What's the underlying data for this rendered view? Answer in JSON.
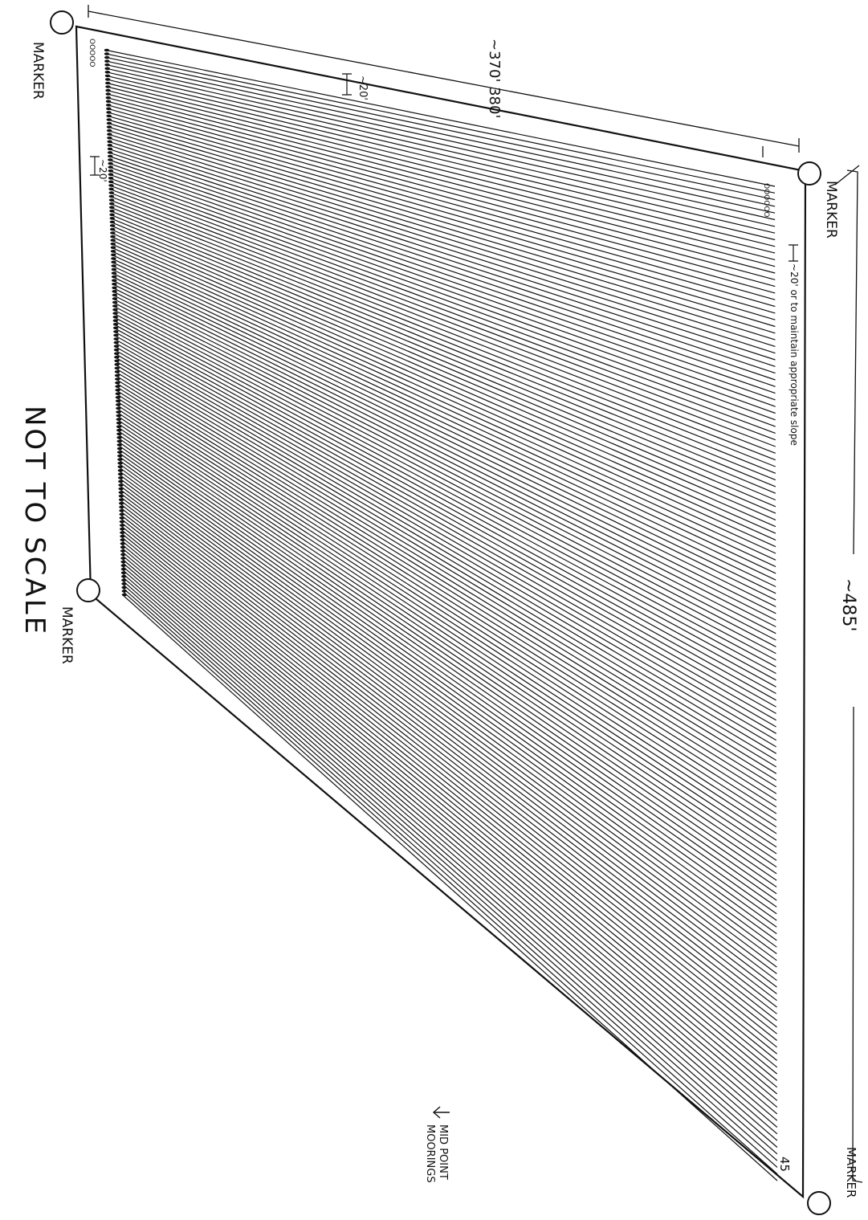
{
  "diagram": {
    "labels": {
      "marker_top_left": "MARKER",
      "marker_top_right": "MARKER",
      "marker_bottom_left": "MARKER",
      "marker_bottom_right": "MARKER",
      "not_to_scale": "NOT TO SCALE",
      "width_dimension": "~370' 380'",
      "length_dimension": "~485'",
      "row_spacing_top": "~20'",
      "row_spacing_left": "~20'",
      "row_spacing_note": "~20' or to maintain appropriate slope",
      "mid_point_note_line1": "MID POINT",
      "mid_point_note_line2": "MOORINGS",
      "row_count_label": "45",
      "row_number_stack_top": "OOOOO",
      "row_number_stack_right": "OOOOOO"
    },
    "row_line_count": 150,
    "colors": {
      "ink": "#111111",
      "paper": "#ffffff"
    }
  }
}
